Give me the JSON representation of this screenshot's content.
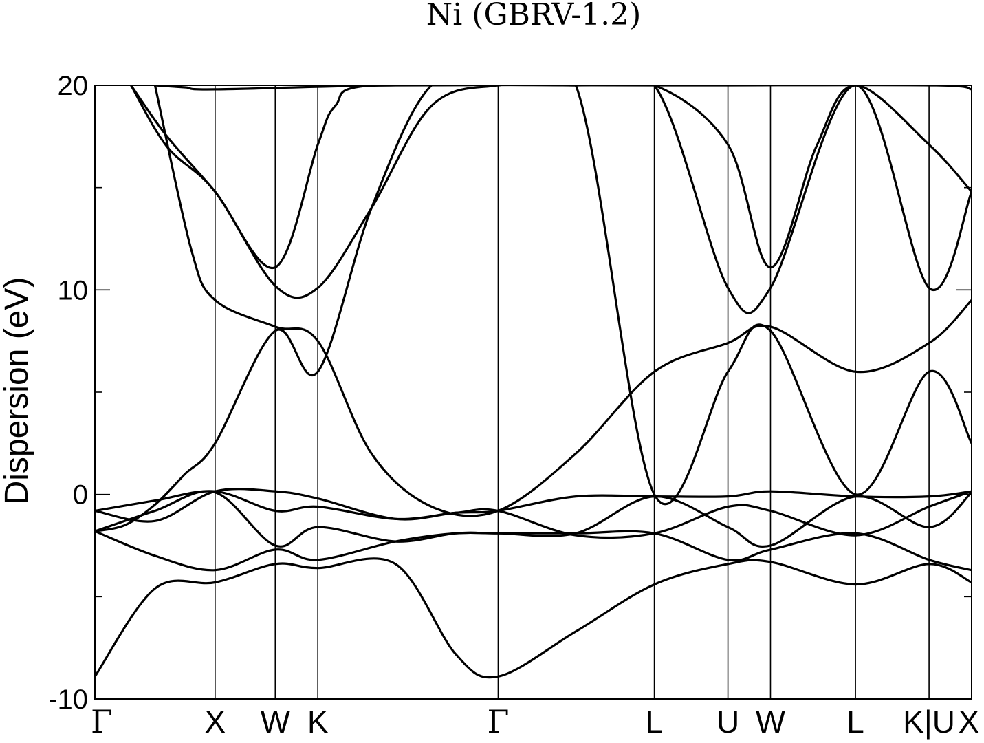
{
  "chart_data": {
    "type": "line",
    "title": "Ni (GBRV-1.2)",
    "xlabel": "",
    "ylabel": "Dispersion (eV)",
    "ylim": [
      -10,
      20
    ],
    "yticks": [
      -10,
      0,
      10,
      20
    ],
    "y_minor_ticks": [
      -5,
      5,
      15
    ],
    "grid": false,
    "legend": "none",
    "kpath_labels": [
      "Γ",
      "X",
      "W",
      "K",
      "Γ",
      "L",
      "U",
      "W",
      "L",
      "K|U",
      "X"
    ],
    "kpath_positions": [
      0,
      1,
      1.5,
      1.854,
      3.354,
      4.653,
      5.265,
      5.619,
      6.326,
      6.938,
      7.292
    ],
    "series": [
      {
        "x": [
          0,
          0.5,
          1,
          1.5,
          1.854,
          2.5,
          3,
          3.354,
          4,
          4.653,
          5.265,
          5.619,
          6.326,
          6.938,
          7.292
        ],
        "values": [
          -8.9,
          -4.6,
          -4.3,
          -3.4,
          -3.6,
          -3.4,
          -7.8,
          -8.9,
          -6.7,
          -4.4,
          -3.4,
          -3.3,
          -4.4,
          -3.4,
          -4.3
        ]
      },
      {
        "x": [
          0,
          0.5,
          1,
          1.5,
          1.854,
          2.5,
          3,
          3.354,
          4,
          4.653,
          5.265,
          5.619,
          6.326,
          6.938,
          7.292
        ],
        "values": [
          -1.8,
          -3.0,
          -3.7,
          -2.7,
          -3.2,
          -2.3,
          -1.9,
          -1.9,
          -1.9,
          -1.9,
          -3.2,
          -2.7,
          -1.9,
          -3.2,
          -3.7
        ]
      },
      {
        "x": [
          0,
          0.5,
          1,
          1.5,
          1.854,
          2.5,
          3,
          3.354,
          4,
          4.653,
          5.265,
          5.619,
          6.326,
          6.938,
          7.292
        ],
        "values": [
          -1.8,
          -0.8,
          0.1,
          -2.5,
          -1.6,
          -2.3,
          -1.9,
          -1.9,
          -1.9,
          -0.1,
          -1.6,
          -2.5,
          -0.1,
          -1.6,
          0.1
        ]
      },
      {
        "x": [
          0,
          0.5,
          1,
          1.5,
          1.854,
          2.5,
          3,
          3.354,
          4,
          4.653,
          5.265,
          5.619,
          6.326,
          6.938,
          7.292
        ],
        "values": [
          -0.8,
          -0.3,
          0.15,
          -0.8,
          -0.6,
          -1.2,
          -0.9,
          -0.8,
          -2.0,
          -1.9,
          -0.6,
          -0.8,
          -2.0,
          -0.6,
          0.15
        ]
      },
      {
        "x": [
          0,
          0.5,
          1,
          1.5,
          1.854,
          2.5,
          3,
          3.354,
          4,
          4.653,
          5.265,
          5.619,
          6.326,
          6.938,
          7.292
        ],
        "values": [
          -0.8,
          -1.3,
          0.15,
          0.15,
          -0.2,
          -1.2,
          -0.9,
          -0.8,
          -0.1,
          -0.1,
          -0.1,
          0.15,
          -0.1,
          -0.1,
          0.15
        ]
      },
      {
        "x": [
          0,
          0.25,
          0.5,
          0.75,
          1,
          1.5,
          1.854,
          2.3,
          2.8,
          3.354,
          4,
          4.653,
          5.265,
          5.619,
          6.326,
          6.938,
          7.292
        ],
        "values": [
          -1.8,
          -1.5,
          -0.5,
          1.0,
          2.5,
          8.0,
          6.0,
          14.0,
          20.0,
          20.0,
          20.0,
          0.0,
          6.0,
          8.0,
          0.0,
          6.0,
          2.5
        ]
      },
      {
        "x": [
          0.5,
          0.8,
          1,
          1.5,
          1.854,
          2.3,
          2.8,
          3.354,
          4,
          4.653,
          5.265,
          5.619,
          6.326,
          6.938,
          7.292
        ],
        "values": [
          20.0,
          12.0,
          9.5,
          8.2,
          7.5,
          2.0,
          -0.6,
          -0.8,
          2.0,
          6.0,
          7.4,
          8.2,
          6.0,
          7.4,
          9.5
        ]
      },
      {
        "x": [
          0.3,
          0.6,
          1,
          1.5,
          1.854,
          2.3,
          2.8,
          3.354,
          4,
          4.653,
          5.265,
          5.619,
          6.326,
          6.938,
          7.292
        ],
        "values": [
          20.0,
          17.0,
          14.8,
          10.2,
          10.1,
          14.0,
          19.0,
          20.0,
          20.0,
          20.0,
          10.1,
          10.1,
          20.0,
          10.1,
          14.8
        ]
      },
      {
        "x": [
          0.3,
          0.6,
          1,
          1.5,
          1.854,
          2.0,
          2.3,
          4,
          4.653,
          5.265,
          5.619,
          6.0,
          6.326,
          6.938,
          7.292
        ],
        "values": [
          20.0,
          17.5,
          14.8,
          11.1,
          17.1,
          19.0,
          20.0,
          20.0,
          20.0,
          17.1,
          11.1,
          17.0,
          20.0,
          17.1,
          14.8
        ]
      },
      {
        "x": [
          0.5,
          0.75,
          1,
          2.5,
          4.653,
          5.0,
          5.265,
          7.0,
          7.292
        ],
        "values": [
          20.0,
          19.9,
          19.8,
          20.0,
          20.0,
          20.0,
          20.0,
          20.0,
          19.8
        ]
      }
    ]
  }
}
